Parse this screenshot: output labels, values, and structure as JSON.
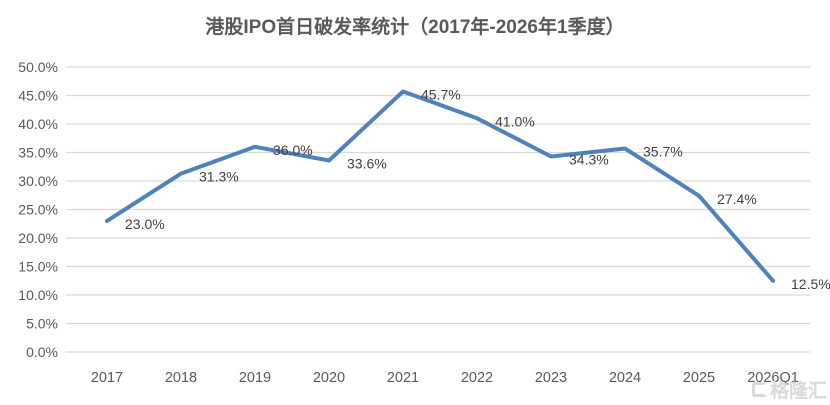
{
  "title": "港股IPO首日破发率统计（2017年-2026年1季度）",
  "watermark": {
    "text": "格隆汇",
    "icon": "gelonghui-logo-icon"
  },
  "colors": {
    "line": "#4F81BD",
    "gridline": "#D9D9D9",
    "axis_text": "#595959",
    "data_label_text": "#404040",
    "title_text": "#595959",
    "watermark": "#D5D5D5",
    "background": "#FFFFFF"
  },
  "chart_data": {
    "type": "line",
    "title": "港股IPO首日破发率统计（2017年-2026年1季度）",
    "categories": [
      "2017",
      "2018",
      "2019",
      "2020",
      "2021",
      "2022",
      "2023",
      "2024",
      "2025",
      "2026Q1"
    ],
    "series": [
      {
        "name": "首日破发率",
        "values": [
          23.0,
          31.3,
          36.0,
          33.6,
          45.7,
          41.0,
          34.3,
          35.7,
          27.4,
          12.5
        ],
        "data_labels": [
          "23.0%",
          "31.3%",
          "36.0%",
          "33.6%",
          "45.7%",
          "41.0%",
          "34.3%",
          "35.7%",
          "27.4%",
          "12.5%"
        ]
      }
    ],
    "xlabel": "",
    "ylabel": "",
    "ylim": [
      0,
      50
    ],
    "ytick_step": 5,
    "ytick_labels": [
      "0.0%",
      "5.0%",
      "10.0%",
      "15.0%",
      "20.0%",
      "25.0%",
      "30.0%",
      "35.0%",
      "40.0%",
      "45.0%",
      "50.0%"
    ],
    "grid": true,
    "legend_position": "none"
  }
}
